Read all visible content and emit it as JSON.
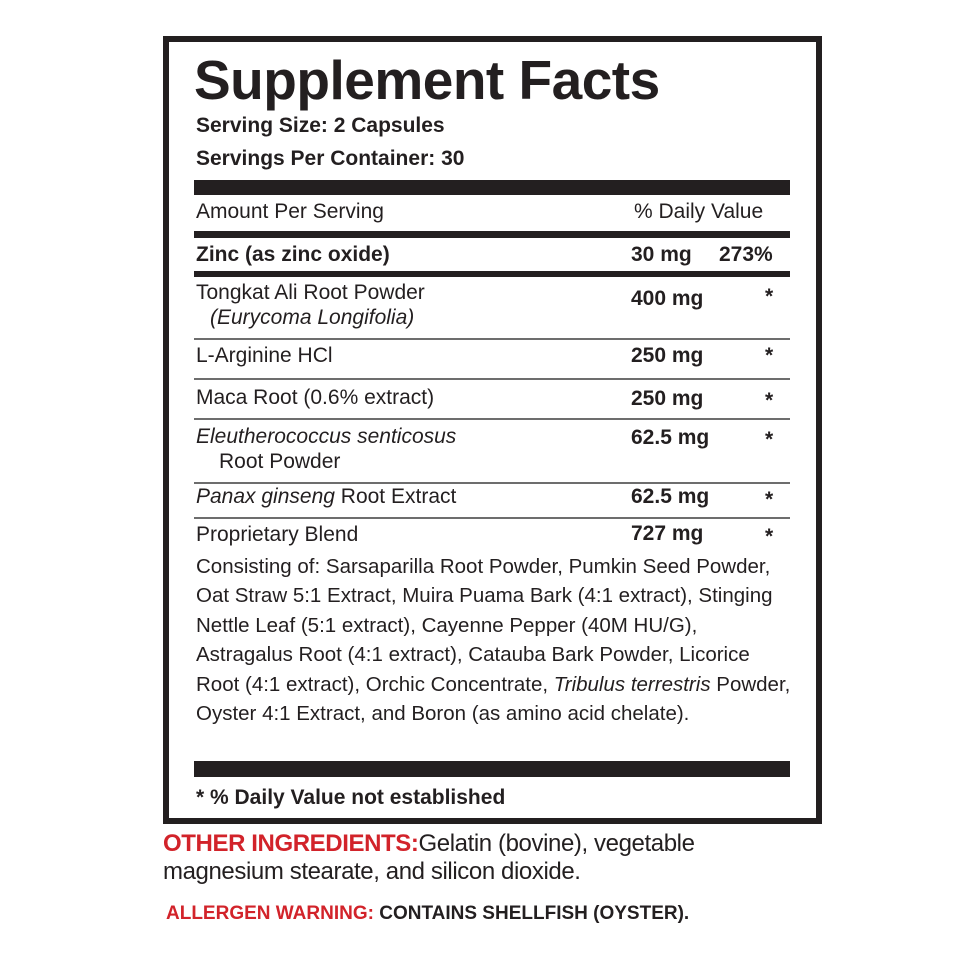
{
  "title": "Supplement Facts",
  "serving_size": "Serving Size: 2 Capsules",
  "servings_per_container": "Servings Per Container: 30",
  "header": {
    "amount": "Amount Per Serving",
    "dv": "% Daily Value"
  },
  "rows": [
    {
      "name": "Zinc (as zinc oxide)",
      "amount": "30 mg",
      "dv": "273%"
    },
    {
      "name": "Tongkat Ali Root Powder",
      "sub": "(Eurycoma Longifolia)",
      "amount": "400 mg",
      "dv": "*"
    },
    {
      "name": "L-Arginine HCl",
      "amount": "250 mg",
      "dv": "*"
    },
    {
      "name": "Maca Root (0.6% extract)",
      "amount": "250 mg",
      "dv": "*"
    },
    {
      "name": "Eleutherococcus senticosus",
      "sub": "Root Powder",
      "amount": "62.5 mg",
      "dv": "*"
    },
    {
      "name_italic": "Panax ginseng",
      "name": " Root Extract",
      "amount": "62.5 mg",
      "dv": "*"
    },
    {
      "name": "Proprietary Blend",
      "amount": "727 mg",
      "dv": "*"
    }
  ],
  "blend": {
    "part1": "Consisting of: Sarsaparilla Root Powder, Pumkin Seed Powder, Oat Straw 5:1 Extract, Muira Puama Bark (4:1 extract), Stinging Nettle Leaf (5:1 extract), Cayenne Pepper (40M HU/G), Astragalus Root (4:1 extract), Catauba Bark Powder, Licorice Root (4:1 extract), Orchic Concentrate, ",
    "italic": "Tribulus terrestris",
    "part2": " Powder, Oyster 4:1 Extract, and Boron (as amino acid chelate)."
  },
  "footnote": "* % Daily Value not established",
  "other_ingredients": {
    "label": "OTHER INGREDIENTS:",
    "text": "Gelatin (bovine), vegetable magnesium stearate, and silicon dioxide."
  },
  "allergen": {
    "label": "ALLERGEN WARNING:",
    "text": " CONTAINS SHELLFISH (OYSTER)."
  },
  "colors": {
    "text": "#231f20",
    "accent_red": "#d2232a"
  }
}
